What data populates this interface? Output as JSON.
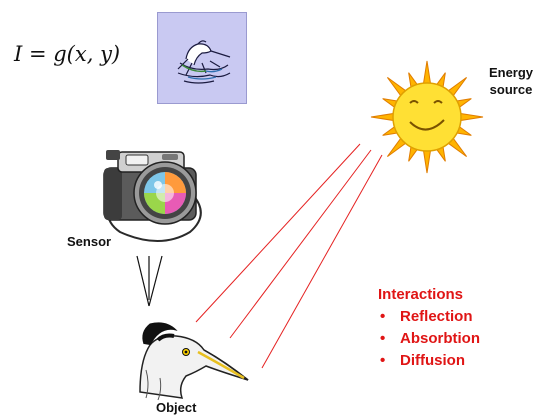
{
  "formula": "I = g(x, y)",
  "labels": {
    "energy_source": "Energy\nsource",
    "sensor": "Sensor",
    "object": "Object"
  },
  "interactions": {
    "title": "Interactions",
    "items": [
      "Reflection",
      "Absorbtion",
      "Diffusion"
    ]
  },
  "icons": {
    "image_thumbnail": "heron-sketch-icon",
    "camera": "camera-icon",
    "sun": "smiling-sun-icon",
    "object": "heron-head-icon"
  },
  "colors": {
    "ray": "#e52222",
    "interactions_text": "#e01515",
    "thumbnail_bg": "#c9c9f2",
    "sun": "#ffd21e"
  }
}
